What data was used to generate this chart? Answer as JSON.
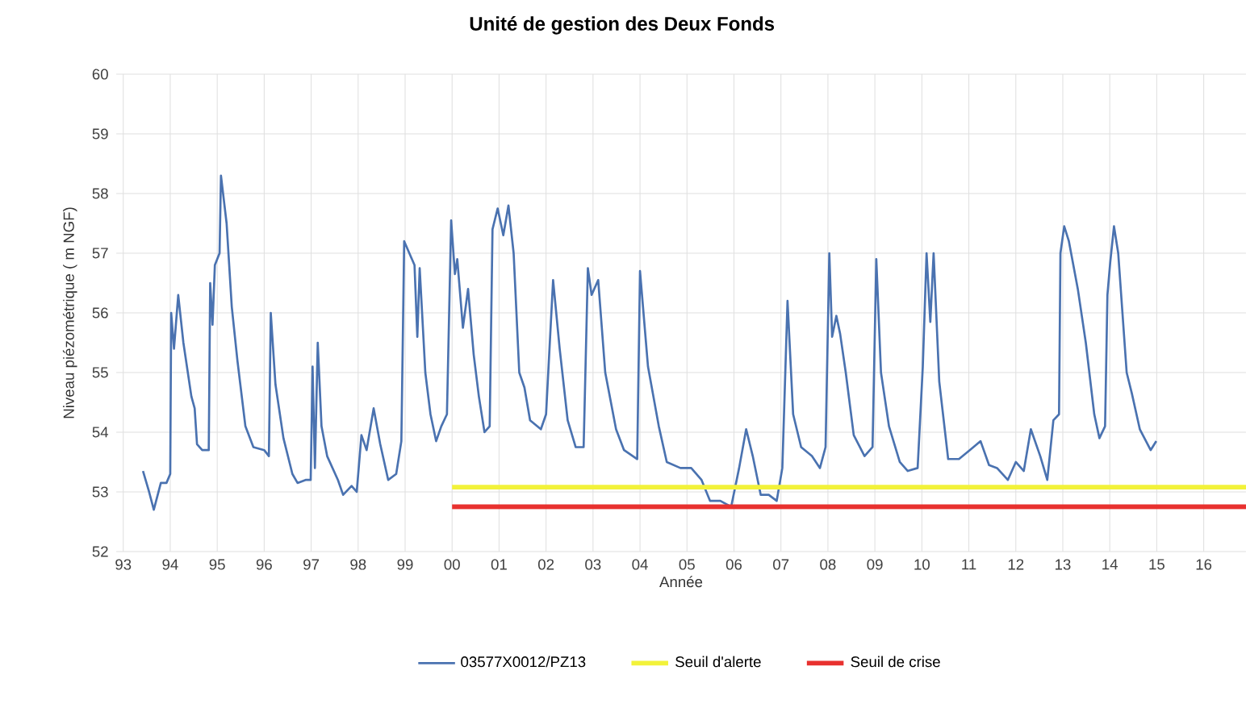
{
  "chart_data": {
    "type": "line",
    "title": "Unité de gestion des Deux Fonds",
    "xlabel": "Année",
    "ylabel": "Niveau piézométrique ( m NGF)",
    "xlim": [
      1992.85,
      2016.9
    ],
    "ylim": [
      52,
      60
    ],
    "xticks": [
      {
        "value": 1993,
        "label": "93"
      },
      {
        "value": 1994,
        "label": "94"
      },
      {
        "value": 1995,
        "label": "95"
      },
      {
        "value": 1996,
        "label": "96"
      },
      {
        "value": 1997,
        "label": "97"
      },
      {
        "value": 1998,
        "label": "98"
      },
      {
        "value": 1999,
        "label": "99"
      },
      {
        "value": 2000,
        "label": "00"
      },
      {
        "value": 2001,
        "label": "01"
      },
      {
        "value": 2002,
        "label": "02"
      },
      {
        "value": 2003,
        "label": "03"
      },
      {
        "value": 2004,
        "label": "04"
      },
      {
        "value": 2005,
        "label": "05"
      },
      {
        "value": 2006,
        "label": "06"
      },
      {
        "value": 2007,
        "label": "07"
      },
      {
        "value": 2008,
        "label": "08"
      },
      {
        "value": 2009,
        "label": "09"
      },
      {
        "value": 2010,
        "label": "10"
      },
      {
        "value": 2011,
        "label": "11"
      },
      {
        "value": 2012,
        "label": "12"
      },
      {
        "value": 2013,
        "label": "13"
      },
      {
        "value": 2014,
        "label": "14"
      },
      {
        "value": 2015,
        "label": "15"
      },
      {
        "value": 2016,
        "label": "16"
      }
    ],
    "yticks": [
      52,
      53,
      54,
      55,
      56,
      57,
      58,
      59,
      60
    ],
    "grid": true,
    "legend": "bottom",
    "marker": "none",
    "series": [
      {
        "name": "03577X0012/PZ13",
        "color": "#4a72b0",
        "x": [
          1993.42,
          1993.55,
          1993.65,
          1993.8,
          1993.92,
          1994.0,
          1994.02,
          1994.08,
          1994.17,
          1994.28,
          1994.45,
          1994.52,
          1994.57,
          1994.68,
          1994.82,
          1994.85,
          1994.9,
          1994.95,
          1995.05,
          1995.08,
          1995.2,
          1995.31,
          1995.43,
          1995.6,
          1995.77,
          1996.0,
          1996.1,
          1996.14,
          1996.24,
          1996.41,
          1996.6,
          1996.71,
          1996.88,
          1996.99,
          1997.03,
          1997.08,
          1997.14,
          1997.22,
          1997.34,
          1997.57,
          1997.68,
          1997.86,
          1997.97,
          1998.07,
          1998.18,
          1998.33,
          1998.47,
          1998.64,
          1998.81,
          1998.92,
          1998.98,
          1999.09,
          1999.2,
          1999.26,
          1999.31,
          1999.43,
          1999.54,
          1999.66,
          1999.77,
          1999.89,
          1999.98,
          2000.06,
          2000.11,
          2000.23,
          2000.34,
          2000.46,
          2000.57,
          2000.69,
          2000.8,
          2000.86,
          2000.97,
          2001.09,
          2001.2,
          2001.31,
          2001.43,
          2001.54,
          2001.66,
          2001.89,
          2002.0,
          2002.15,
          2002.29,
          2002.46,
          2002.63,
          2002.8,
          2002.89,
          2002.97,
          2003.11,
          2003.26,
          2003.49,
          2003.66,
          2003.94,
          2004.0,
          2004.17,
          2004.4,
          2004.57,
          2004.86,
          2005.09,
          2005.31,
          2005.49,
          2005.71,
          2005.94,
          2006.11,
          2006.26,
          2006.4,
          2006.57,
          2006.74,
          2006.91,
          2007.03,
          2007.14,
          2007.26,
          2007.43,
          2007.66,
          2007.83,
          2007.95,
          2008.03,
          2008.09,
          2008.18,
          2008.26,
          2008.38,
          2008.55,
          2008.78,
          2008.95,
          2009.03,
          2009.13,
          2009.3,
          2009.53,
          2009.7,
          2009.91,
          2010.02,
          2010.1,
          2010.18,
          2010.25,
          2010.37,
          2010.56,
          2010.79,
          2011.02,
          2011.25,
          2011.43,
          2011.6,
          2011.83,
          2012.0,
          2012.17,
          2012.32,
          2012.52,
          2012.67,
          2012.8,
          2012.92,
          2012.95,
          2013.03,
          2013.13,
          2013.32,
          2013.49,
          2013.67,
          2013.78,
          2013.9,
          2013.95,
          2014.01,
          2014.09,
          2014.18,
          2014.36,
          2014.47,
          2014.64,
          2014.87,
          2014.99
        ],
        "values": [
          53.35,
          53.0,
          52.7,
          53.15,
          53.15,
          53.3,
          56.0,
          55.4,
          56.3,
          55.5,
          54.6,
          54.4,
          53.8,
          53.7,
          53.7,
          56.5,
          55.8,
          56.8,
          57.0,
          58.3,
          57.5,
          56.1,
          55.2,
          54.1,
          53.75,
          53.7,
          53.6,
          56.0,
          54.8,
          53.9,
          53.3,
          53.15,
          53.2,
          53.2,
          55.1,
          53.4,
          55.5,
          54.1,
          53.6,
          53.2,
          52.95,
          53.1,
          53.0,
          53.95,
          53.7,
          54.4,
          53.8,
          53.2,
          53.3,
          53.85,
          57.2,
          57.0,
          56.8,
          55.6,
          56.75,
          55.0,
          54.3,
          53.85,
          54.1,
          54.3,
          57.55,
          56.65,
          56.9,
          55.75,
          56.4,
          55.3,
          54.6,
          54.0,
          54.1,
          57.4,
          57.75,
          57.3,
          57.8,
          57.0,
          55.0,
          54.75,
          54.2,
          54.05,
          54.3,
          56.55,
          55.4,
          54.2,
          53.75,
          53.75,
          56.75,
          56.3,
          56.55,
          55.0,
          54.05,
          53.7,
          53.55,
          56.7,
          55.1,
          54.1,
          53.5,
          53.4,
          53.4,
          53.2,
          52.85,
          52.85,
          52.75,
          53.4,
          54.05,
          53.6,
          52.95,
          52.95,
          52.85,
          53.4,
          56.2,
          54.3,
          53.75,
          53.6,
          53.4,
          53.75,
          57.0,
          55.6,
          55.95,
          55.65,
          55.0,
          53.95,
          53.6,
          53.75,
          56.9,
          55.0,
          54.1,
          53.5,
          53.35,
          53.4,
          55.1,
          57.0,
          55.85,
          57.0,
          54.85,
          53.55,
          53.55,
          53.7,
          53.85,
          53.45,
          53.4,
          53.2,
          53.5,
          53.35,
          54.05,
          53.6,
          53.2,
          54.2,
          54.3,
          57.0,
          57.45,
          57.2,
          56.4,
          55.5,
          54.3,
          53.9,
          54.1,
          56.3,
          56.85,
          57.45,
          57.0,
          55.0,
          54.65,
          54.05,
          53.7,
          53.85
        ]
      },
      {
        "name": "Seuil d'alerte",
        "color": "#f2f23a",
        "x": [
          2000,
          2016.9
        ],
        "values": [
          53.08,
          53.08
        ]
      },
      {
        "name": "Seuil de crise",
        "color": "#e8312f",
        "x": [
          2000,
          2016.9
        ],
        "values": [
          52.75,
          52.75
        ]
      }
    ]
  }
}
